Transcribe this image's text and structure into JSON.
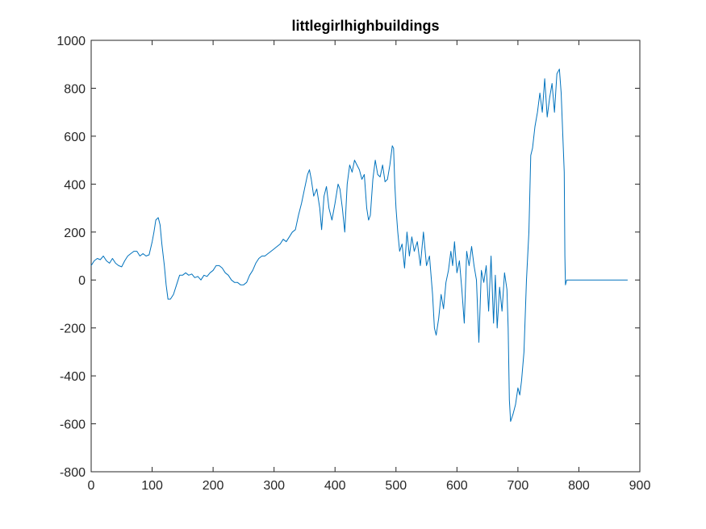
{
  "chart_data": {
    "type": "line",
    "title": "littlegirlhighbuildings",
    "xlabel": "",
    "ylabel": "",
    "xlim": [
      0,
      900
    ],
    "ylim": [
      -800,
      1000
    ],
    "x_ticks": [
      0,
      100,
      200,
      300,
      400,
      500,
      600,
      700,
      800,
      900
    ],
    "y_ticks": [
      -800,
      -600,
      -400,
      -200,
      0,
      200,
      400,
      600,
      800,
      1000
    ],
    "x_tick_labels": [
      "0",
      "100",
      "200",
      "300",
      "400",
      "500",
      "600",
      "700",
      "800",
      "900"
    ],
    "y_tick_labels": [
      "-800",
      "-600",
      "-400",
      "-200",
      "0",
      "200",
      "400",
      "600",
      "800",
      "1000"
    ],
    "grid": false,
    "line_color": "#0072BD",
    "series": [
      {
        "points": [
          [
            0,
            60
          ],
          [
            5,
            80
          ],
          [
            10,
            90
          ],
          [
            15,
            85
          ],
          [
            20,
            100
          ],
          [
            25,
            80
          ],
          [
            30,
            70
          ],
          [
            35,
            90
          ],
          [
            40,
            70
          ],
          [
            45,
            60
          ],
          [
            50,
            55
          ],
          [
            55,
            80
          ],
          [
            60,
            100
          ],
          [
            65,
            110
          ],
          [
            70,
            120
          ],
          [
            75,
            120
          ],
          [
            80,
            100
          ],
          [
            85,
            110
          ],
          [
            90,
            100
          ],
          [
            95,
            105
          ],
          [
            100,
            160
          ],
          [
            103,
            200
          ],
          [
            106,
            250
          ],
          [
            110,
            260
          ],
          [
            113,
            230
          ],
          [
            116,
            150
          ],
          [
            120,
            60
          ],
          [
            123,
            -20
          ],
          [
            126,
            -80
          ],
          [
            130,
            -80
          ],
          [
            135,
            -60
          ],
          [
            140,
            -20
          ],
          [
            145,
            20
          ],
          [
            150,
            20
          ],
          [
            155,
            30
          ],
          [
            160,
            20
          ],
          [
            165,
            25
          ],
          [
            170,
            10
          ],
          [
            175,
            15
          ],
          [
            180,
            0
          ],
          [
            185,
            20
          ],
          [
            190,
            15
          ],
          [
            195,
            30
          ],
          [
            200,
            40
          ],
          [
            205,
            60
          ],
          [
            210,
            60
          ],
          [
            215,
            50
          ],
          [
            220,
            30
          ],
          [
            225,
            20
          ],
          [
            230,
            0
          ],
          [
            235,
            -10
          ],
          [
            240,
            -10
          ],
          [
            245,
            -20
          ],
          [
            250,
            -20
          ],
          [
            255,
            -10
          ],
          [
            260,
            20
          ],
          [
            265,
            40
          ],
          [
            270,
            70
          ],
          [
            275,
            90
          ],
          [
            280,
            100
          ],
          [
            285,
            100
          ],
          [
            290,
            110
          ],
          [
            295,
            120
          ],
          [
            300,
            130
          ],
          [
            305,
            140
          ],
          [
            310,
            150
          ],
          [
            315,
            170
          ],
          [
            320,
            160
          ],
          [
            325,
            180
          ],
          [
            330,
            200
          ],
          [
            335,
            210
          ],
          [
            340,
            270
          ],
          [
            345,
            320
          ],
          [
            350,
            380
          ],
          [
            355,
            440
          ],
          [
            358,
            460
          ],
          [
            361,
            420
          ],
          [
            365,
            350
          ],
          [
            370,
            380
          ],
          [
            375,
            300
          ],
          [
            378,
            210
          ],
          [
            382,
            350
          ],
          [
            386,
            390
          ],
          [
            390,
            300
          ],
          [
            395,
            250
          ],
          [
            400,
            320
          ],
          [
            405,
            400
          ],
          [
            408,
            380
          ],
          [
            412,
            300
          ],
          [
            416,
            200
          ],
          [
            420,
            400
          ],
          [
            424,
            480
          ],
          [
            428,
            450
          ],
          [
            432,
            500
          ],
          [
            436,
            480
          ],
          [
            440,
            460
          ],
          [
            444,
            420
          ],
          [
            448,
            440
          ],
          [
            452,
            300
          ],
          [
            455,
            250
          ],
          [
            458,
            270
          ],
          [
            462,
            420
          ],
          [
            466,
            500
          ],
          [
            470,
            440
          ],
          [
            474,
            430
          ],
          [
            478,
            480
          ],
          [
            482,
            410
          ],
          [
            486,
            420
          ],
          [
            490,
            480
          ],
          [
            494,
            560
          ],
          [
            496,
            550
          ],
          [
            498,
            400
          ],
          [
            500,
            300
          ],
          [
            503,
            200
          ],
          [
            506,
            120
          ],
          [
            510,
            150
          ],
          [
            514,
            50
          ],
          [
            518,
            200
          ],
          [
            522,
            100
          ],
          [
            526,
            180
          ],
          [
            530,
            120
          ],
          [
            535,
            160
          ],
          [
            540,
            60
          ],
          [
            545,
            200
          ],
          [
            550,
            60
          ],
          [
            555,
            100
          ],
          [
            560,
            -60
          ],
          [
            563,
            -200
          ],
          [
            566,
            -230
          ],
          [
            570,
            -160
          ],
          [
            574,
            -60
          ],
          [
            578,
            -120
          ],
          [
            582,
            -10
          ],
          [
            586,
            40
          ],
          [
            590,
            120
          ],
          [
            593,
            60
          ],
          [
            596,
            160
          ],
          [
            600,
            30
          ],
          [
            604,
            80
          ],
          [
            608,
            -40
          ],
          [
            612,
            -180
          ],
          [
            616,
            120
          ],
          [
            620,
            60
          ],
          [
            624,
            140
          ],
          [
            628,
            60
          ],
          [
            632,
            0
          ],
          [
            636,
            -260
          ],
          [
            640,
            40
          ],
          [
            644,
            -10
          ],
          [
            648,
            60
          ],
          [
            652,
            -130
          ],
          [
            656,
            100
          ],
          [
            660,
            -180
          ],
          [
            663,
            20
          ],
          [
            666,
            -200
          ],
          [
            670,
            -30
          ],
          [
            674,
            -130
          ],
          [
            678,
            30
          ],
          [
            682,
            -40
          ],
          [
            684,
            -200
          ],
          [
            686,
            -500
          ],
          [
            688,
            -590
          ],
          [
            692,
            -560
          ],
          [
            696,
            -520
          ],
          [
            700,
            -450
          ],
          [
            703,
            -480
          ],
          [
            706,
            -420
          ],
          [
            710,
            -300
          ],
          [
            714,
            0
          ],
          [
            718,
            200
          ],
          [
            721,
            520
          ],
          [
            724,
            550
          ],
          [
            728,
            640
          ],
          [
            732,
            700
          ],
          [
            736,
            780
          ],
          [
            740,
            700
          ],
          [
            744,
            840
          ],
          [
            748,
            680
          ],
          [
            752,
            760
          ],
          [
            756,
            820
          ],
          [
            760,
            700
          ],
          [
            764,
            860
          ],
          [
            768,
            880
          ],
          [
            771,
            780
          ],
          [
            774,
            580
          ],
          [
            776,
            450
          ],
          [
            777,
            100
          ],
          [
            778,
            -20
          ],
          [
            780,
            0
          ],
          [
            800,
            0
          ],
          [
            820,
            0
          ],
          [
            840,
            0
          ],
          [
            860,
            0
          ],
          [
            880,
            0
          ]
        ]
      }
    ]
  }
}
